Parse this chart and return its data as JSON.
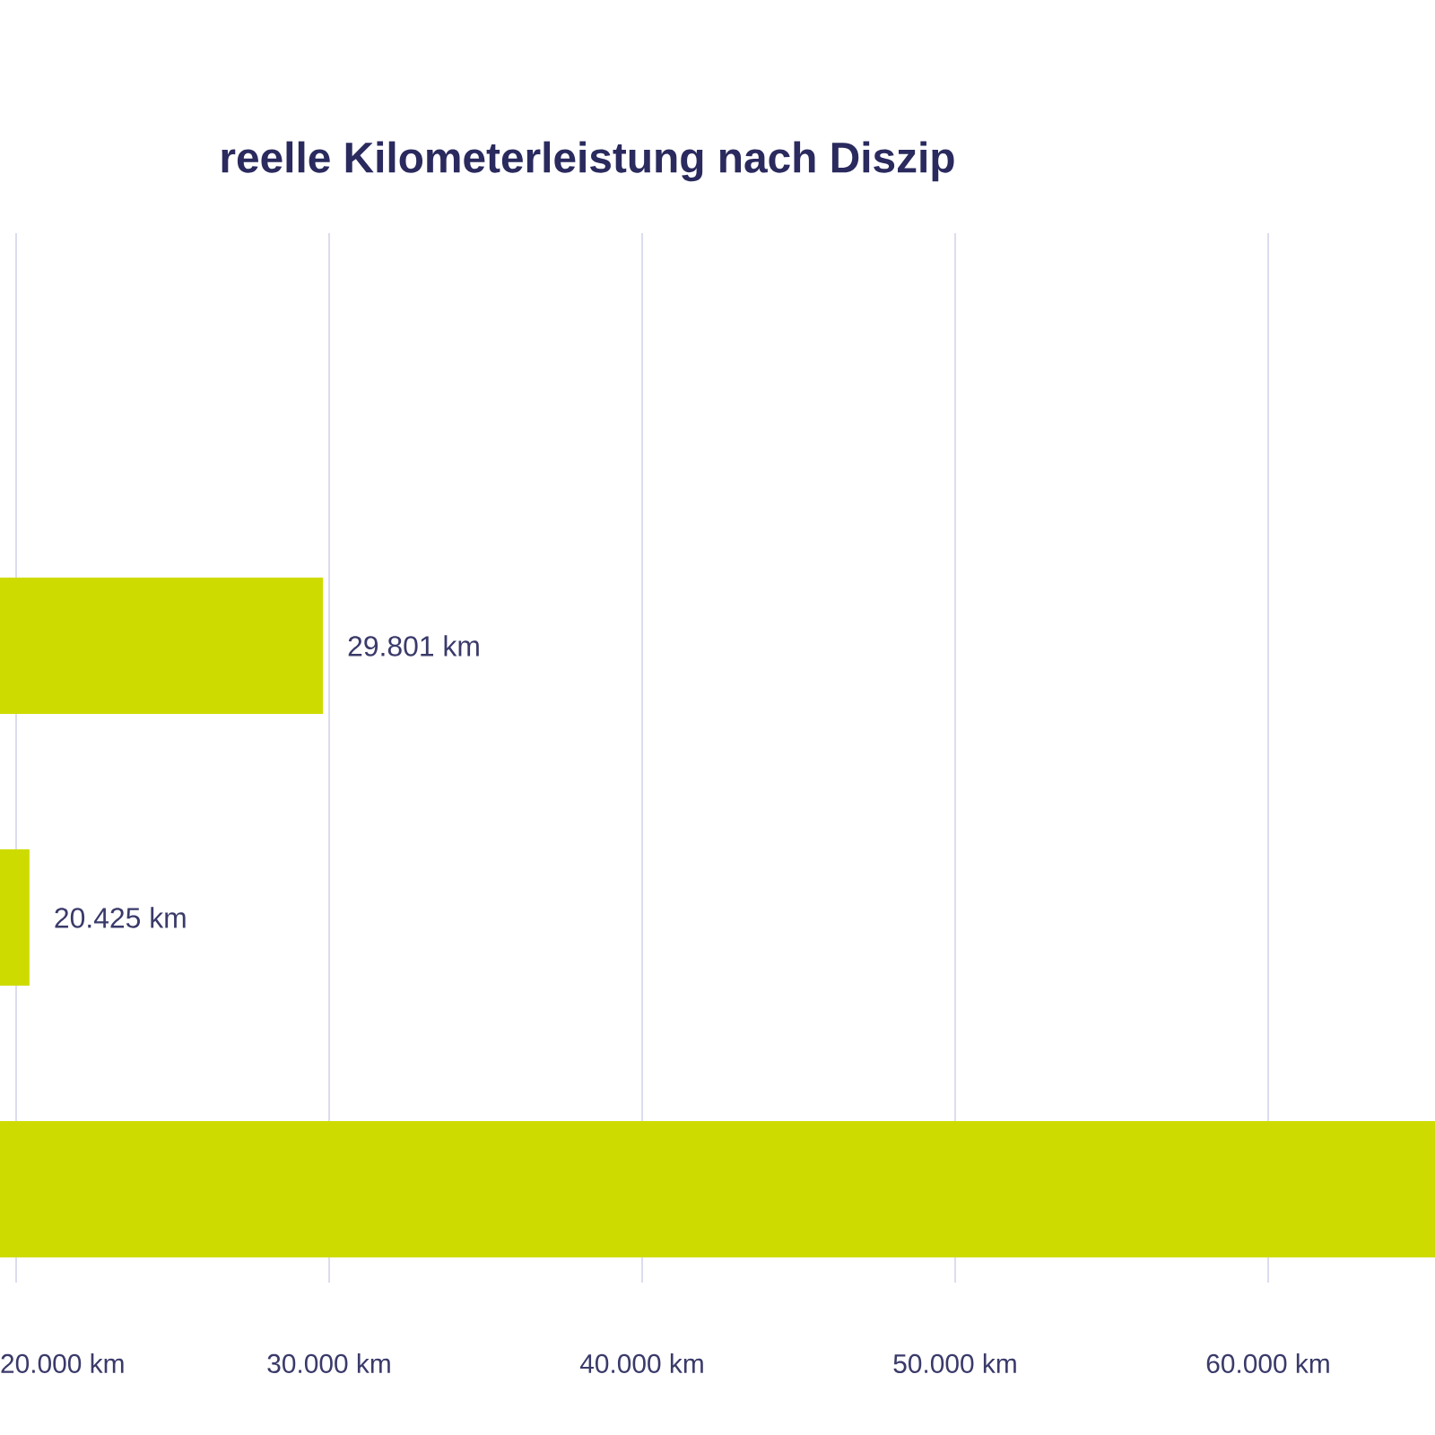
{
  "chart_data": {
    "type": "bar",
    "orientation": "horizontal",
    "title": "reelle Kilometerleistung nach Diszip",
    "categories": [
      null,
      null,
      null
    ],
    "values": [
      29801,
      20425,
      65330
    ],
    "value_labels": [
      "29.801 km",
      "20.425 km",
      null
    ],
    "color": "#cedb00",
    "xlim": [
      19484,
      65330
    ],
    "xticks": [
      {
        "value": 20000,
        "label": "20.000 km"
      },
      {
        "value": 30000,
        "label": "30.000 km"
      },
      {
        "value": 40000,
        "label": "40.000 km"
      },
      {
        "value": 50000,
        "label": "50.000 km"
      },
      {
        "value": 60000,
        "label": "60.000 km"
      }
    ],
    "grid": "x"
  }
}
